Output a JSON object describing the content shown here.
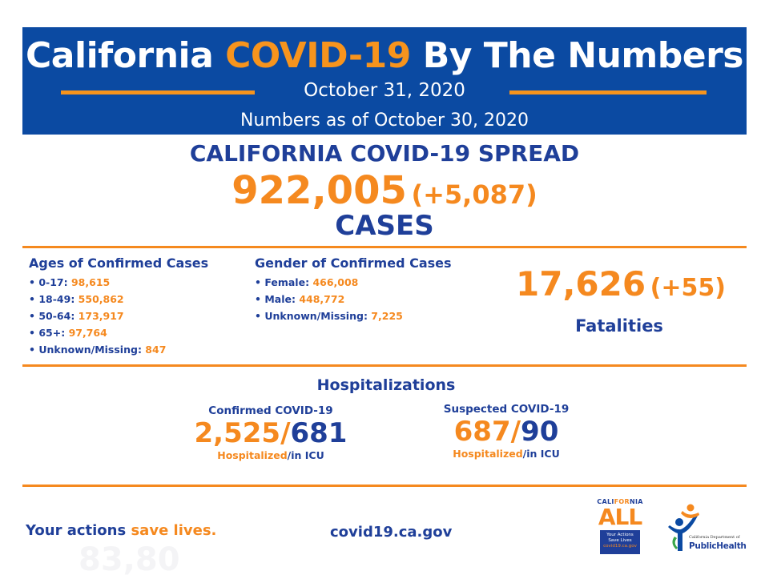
{
  "header": {
    "title_pre": "California ",
    "title_highlight": "COVID-19",
    "title_post": " By The Numbers",
    "date": "October 31, 2020",
    "as_of": "Numbers as of October 30, 2020"
  },
  "spread": {
    "title": "CALIFORNIA COVID-19 SPREAD",
    "cases": "922,005",
    "cases_delta": "(+5,087)",
    "cases_label": "CASES"
  },
  "ages": {
    "title": "Ages of Confirmed Cases",
    "items": [
      {
        "label": "• 0-17: ",
        "value": "98,615"
      },
      {
        "label": "• 18-49: ",
        "value": "550,862"
      },
      {
        "label": "• 50-64: ",
        "value": "173,917"
      },
      {
        "label": "• 65+: ",
        "value": "97,764"
      },
      {
        "label": "• Unknown/Missing: ",
        "value": "847"
      }
    ]
  },
  "gender": {
    "title": "Gender of Confirmed Cases",
    "items": [
      {
        "label": "• Female: ",
        "value": "466,008"
      },
      {
        "label": "• Male: ",
        "value": "448,772"
      },
      {
        "label": "• Unknown/Missing: ",
        "value": "7,225"
      }
    ]
  },
  "fatalities": {
    "number": "17,626",
    "delta": "(+55)",
    "label": "Fatalities"
  },
  "hospitalizations": {
    "title": "Hospitalizations",
    "confirmed": {
      "label": "Confirmed COVID-19",
      "hospitalized": "2,525",
      "icu": "681",
      "sub_hosp": "Hospitalized",
      "sub_icu": "/in ICU"
    },
    "suspected": {
      "label": "Suspected COVID-19",
      "hospitalized": "687",
      "icu": "90",
      "sub_hosp": "Hospitalized",
      "sub_icu": "/in ICU"
    },
    "slash": "/"
  },
  "footer": {
    "tagline_pre": "Your actions ",
    "tagline_highlight": "save lives.",
    "url": "covid19.ca.gov",
    "faint_number": "83,80"
  },
  "logos": {
    "ca_all": {
      "cal": "CALI",
      "for": "FOR",
      "nia": "NIA",
      "all": "ALL",
      "line1": "Your Actions",
      "line2": "Save Lives",
      "url": "covid19.ca.gov"
    },
    "cdph": {
      "dept": "California Department of",
      "name": "PublicHealth"
    }
  },
  "colors": {
    "header_bg": "#0b4aa2",
    "navy_text": "#1f3f99",
    "orange": "#f5891f"
  }
}
